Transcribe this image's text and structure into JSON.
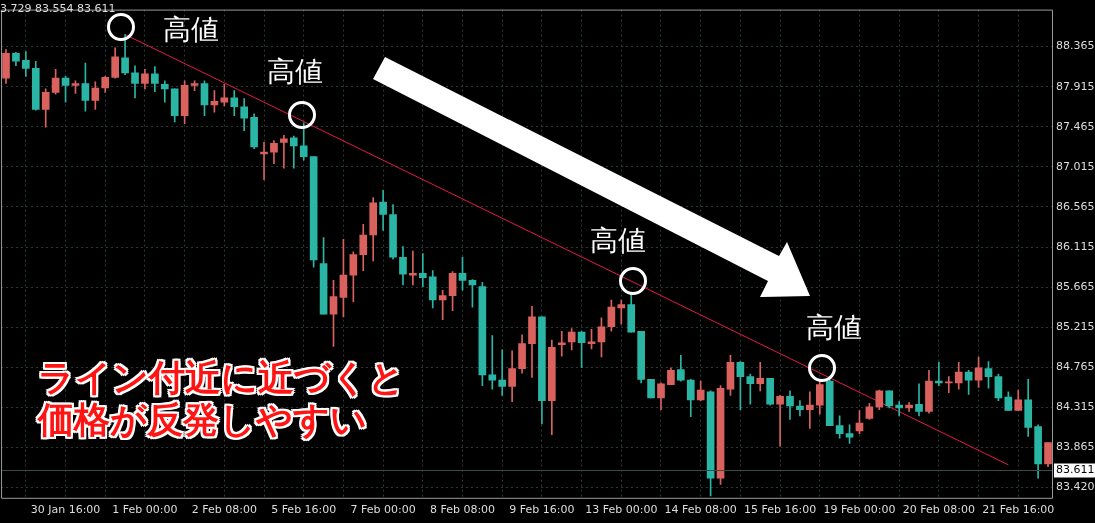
{
  "chart_data": {
    "type": "candlestick",
    "categories": [
      null,
      null,
      null,
      null,
      null,
      null,
      "30 Jan 16:00",
      null,
      null,
      null,
      null,
      null,
      null,
      null,
      "1 Feb 00:00",
      null,
      null,
      null,
      null,
      null,
      null,
      null,
      "2 Feb 08:00",
      null,
      null,
      null,
      null,
      null,
      null,
      null,
      "5 Feb 16:00",
      null,
      null,
      null,
      null,
      null,
      null,
      null,
      "7 Feb 00:00",
      null,
      null,
      null,
      null,
      null,
      null,
      null,
      "8 Feb 08:00",
      null,
      null,
      null,
      null,
      null,
      null,
      null,
      "9 Feb 16:00",
      null,
      null,
      null,
      null,
      null,
      null,
      null,
      "13 Feb 00:00",
      null,
      null,
      null,
      null,
      null,
      null,
      null,
      "14 Feb 08:00",
      null,
      null,
      null,
      null,
      null,
      null,
      null,
      "15 Feb 16:00",
      null,
      null,
      null,
      null,
      null,
      null,
      null,
      "19 Feb 00:00",
      null,
      null,
      null,
      null,
      null,
      null,
      null,
      "20 Feb 08:00",
      null,
      null,
      null,
      null,
      null,
      null,
      null,
      "21 Feb 16:00",
      null,
      null,
      null
    ],
    "ohlc": [
      [
        88.01,
        88.33,
        87.95,
        88.29
      ],
      [
        88.29,
        88.3,
        88.15,
        88.2
      ],
      [
        88.21,
        88.31,
        88.03,
        88.12
      ],
      [
        88.12,
        88.2,
        87.65,
        87.66
      ],
      [
        87.66,
        87.89,
        87.46,
        87.85
      ],
      [
        87.85,
        88.11,
        87.83,
        88.01
      ],
      [
        88.01,
        88.03,
        87.74,
        87.93
      ],
      [
        87.93,
        87.98,
        87.84,
        87.95
      ],
      [
        87.95,
        88.18,
        87.64,
        87.76
      ],
      [
        87.76,
        87.97,
        87.66,
        87.9
      ],
      [
        87.9,
        88.03,
        87.85,
        88.02
      ],
      [
        88.02,
        88.35,
        88.01,
        88.25
      ],
      [
        88.24,
        88.5,
        88.05,
        88.07
      ],
      [
        88.07,
        88.15,
        87.79,
        87.95
      ],
      [
        87.95,
        88.11,
        87.89,
        88.06
      ],
      [
        88.06,
        88.14,
        87.86,
        87.95
      ],
      [
        87.94,
        87.98,
        87.74,
        87.89
      ],
      [
        87.89,
        87.89,
        87.52,
        87.59
      ],
      [
        87.59,
        87.98,
        87.5,
        87.93
      ],
      [
        87.93,
        87.98,
        87.87,
        87.95
      ],
      [
        87.95,
        87.98,
        87.59,
        87.71
      ],
      [
        87.71,
        87.87,
        87.63,
        87.75
      ],
      [
        87.74,
        87.94,
        87.7,
        87.79
      ],
      [
        87.79,
        87.87,
        87.59,
        87.69
      ],
      [
        87.69,
        87.78,
        87.42,
        87.56
      ],
      [
        87.57,
        87.61,
        87.22,
        87.24
      ],
      [
        87.16,
        87.29,
        86.87,
        87.18
      ],
      [
        87.18,
        87.31,
        87.05,
        87.28
      ],
      [
        87.29,
        87.37,
        87.0,
        87.33
      ],
      [
        87.34,
        87.36,
        87.0,
        87.25
      ],
      [
        87.25,
        87.51,
        87.09,
        87.13
      ],
      [
        87.13,
        87.13,
        85.89,
        85.97
      ],
      [
        85.93,
        86.22,
        85.36,
        85.36
      ],
      [
        85.36,
        85.74,
        85.0,
        85.56
      ],
      [
        85.55,
        86.2,
        85.33,
        85.8
      ],
      [
        85.8,
        86.06,
        85.5,
        86.03
      ],
      [
        86.03,
        86.37,
        85.85,
        86.25
      ],
      [
        86.25,
        86.67,
        85.96,
        86.61
      ],
      [
        86.62,
        86.75,
        86.3,
        86.48
      ],
      [
        86.48,
        86.59,
        85.98,
        86.0
      ],
      [
        86.0,
        86.12,
        85.69,
        85.81
      ],
      [
        85.8,
        86.07,
        85.69,
        85.82
      ],
      [
        85.82,
        86.04,
        85.67,
        85.77
      ],
      [
        85.78,
        85.85,
        85.43,
        85.52
      ],
      [
        85.52,
        85.63,
        85.3,
        85.57
      ],
      [
        85.57,
        85.84,
        85.4,
        85.82
      ],
      [
        85.82,
        86.0,
        85.63,
        85.74
      ],
      [
        85.74,
        85.75,
        85.44,
        85.69
      ],
      [
        85.67,
        85.72,
        84.56,
        84.68
      ],
      [
        84.68,
        85.12,
        84.52,
        84.62
      ],
      [
        84.62,
        84.96,
        84.45,
        84.55
      ],
      [
        84.55,
        84.95,
        84.38,
        84.75
      ],
      [
        84.75,
        85.13,
        84.7,
        85.03
      ],
      [
        85.03,
        85.45,
        84.65,
        85.33
      ],
      [
        85.33,
        85.33,
        84.13,
        84.39
      ],
      [
        84.39,
        85.07,
        84.01,
        84.99
      ],
      [
        85.02,
        85.17,
        84.89,
        85.04
      ],
      [
        85.05,
        85.2,
        84.96,
        85.16
      ],
      [
        85.16,
        85.17,
        84.76,
        85.04
      ],
      [
        85.03,
        85.19,
        84.97,
        85.05
      ],
      [
        85.05,
        85.32,
        84.88,
        85.22
      ],
      [
        85.22,
        85.52,
        85.17,
        85.44
      ],
      [
        85.43,
        85.52,
        85.25,
        85.47
      ],
      [
        85.47,
        85.59,
        85.16,
        85.16
      ],
      [
        85.17,
        85.17,
        84.59,
        84.63
      ],
      [
        84.63,
        84.63,
        84.42,
        84.42
      ],
      [
        84.42,
        84.59,
        84.29,
        84.58
      ],
      [
        84.57,
        84.76,
        84.57,
        84.73
      ],
      [
        84.74,
        84.9,
        84.61,
        84.62
      ],
      [
        84.62,
        84.63,
        84.21,
        84.4
      ],
      [
        84.4,
        84.61,
        84.39,
        84.51
      ],
      [
        84.49,
        84.5,
        83.32,
        83.52
      ],
      [
        83.52,
        84.56,
        83.45,
        84.53
      ],
      [
        84.52,
        84.9,
        84.45,
        84.82
      ],
      [
        84.82,
        84.83,
        84.29,
        84.66
      ],
      [
        84.66,
        84.69,
        84.35,
        84.58
      ],
      [
        84.58,
        84.82,
        84.5,
        84.64
      ],
      [
        84.64,
        84.64,
        84.34,
        84.35
      ],
      [
        84.35,
        84.45,
        83.88,
        84.44
      ],
      [
        84.44,
        84.5,
        84.18,
        84.33
      ],
      [
        84.33,
        84.39,
        84.22,
        84.29
      ],
      [
        84.29,
        84.49,
        84.08,
        84.34
      ],
      [
        84.34,
        84.63,
        84.24,
        84.57
      ],
      [
        84.61,
        84.63,
        84.11,
        84.11
      ],
      [
        84.11,
        84.22,
        83.97,
        84.02
      ],
      [
        84.02,
        84.12,
        83.91,
        83.98
      ],
      [
        84.05,
        84.28,
        84.02,
        84.14
      ],
      [
        84.19,
        84.36,
        84.18,
        84.32
      ],
      [
        84.32,
        84.51,
        84.29,
        84.5
      ],
      [
        84.5,
        84.5,
        84.31,
        84.33
      ],
      [
        84.34,
        84.38,
        84.22,
        84.31
      ],
      [
        84.31,
        84.37,
        84.27,
        84.34
      ],
      [
        84.35,
        84.58,
        84.22,
        84.27
      ],
      [
        84.27,
        84.73,
        84.25,
        84.61
      ],
      [
        84.61,
        84.82,
        84.56,
        84.59
      ],
      [
        84.59,
        84.66,
        84.48,
        84.6
      ],
      [
        84.59,
        84.82,
        84.52,
        84.71
      ],
      [
        84.71,
        84.73,
        84.46,
        84.62
      ],
      [
        84.62,
        84.88,
        84.54,
        84.76
      ],
      [
        84.75,
        84.83,
        84.53,
        84.66
      ],
      [
        84.66,
        84.69,
        84.39,
        84.42
      ],
      [
        84.43,
        84.49,
        84.28,
        84.28
      ],
      [
        84.28,
        84.51,
        84.28,
        84.4
      ],
      [
        84.4,
        84.63,
        83.99,
        84.09
      ],
      [
        84.1,
        84.12,
        83.52,
        83.68
      ],
      [
        83.68,
        83.92,
        83.65,
        83.92
      ]
    ],
    "colors": [
      "#d9625f",
      "#2ab5a5",
      "#2ab5a5",
      "#2ab5a5",
      "#d9625f",
      "#d9625f",
      "#2ab5a5",
      "#d9625f",
      "#2ab5a5",
      "#d9625f",
      "#d9625f",
      "#d9625f",
      "#2ab5a5",
      "#2ab5a5",
      "#d9625f",
      "#2ab5a5",
      "#2ab5a5",
      "#2ab5a5",
      "#d9625f",
      "#d9625f",
      "#2ab5a5",
      "#d9625f",
      "#d9625f",
      "#2ab5a5",
      "#2ab5a5",
      "#2ab5a5",
      "#d9625f",
      "#d9625f",
      "#d9625f",
      "#2ab5a5",
      "#2ab5a5",
      "#2ab5a5",
      "#2ab5a5",
      "#d9625f",
      "#d9625f",
      "#d9625f",
      "#d9625f",
      "#d9625f",
      "#2ab5a5",
      "#2ab5a5",
      "#2ab5a5",
      "#d9625f",
      "#2ab5a5",
      "#2ab5a5",
      "#d9625f",
      "#d9625f",
      "#2ab5a5",
      "#2ab5a5",
      "#2ab5a5",
      "#2ab5a5",
      "#2ab5a5",
      "#d9625f",
      "#d9625f",
      "#d9625f",
      "#2ab5a5",
      "#d9625f",
      "#d9625f",
      "#d9625f",
      "#2ab5a5",
      "#d9625f",
      "#d9625f",
      "#d9625f",
      "#d9625f",
      "#2ab5a5",
      "#2ab5a5",
      "#2ab5a5",
      "#d9625f",
      "#d9625f",
      "#2ab5a5",
      "#2ab5a5",
      "#d9625f",
      "#2ab5a5",
      "#d9625f",
      "#d9625f",
      "#2ab5a5",
      "#2ab5a5",
      "#d9625f",
      "#2ab5a5",
      "#d9625f",
      "#2ab5a5",
      "#2ab5a5",
      "#d9625f",
      "#d9625f",
      "#2ab5a5",
      "#2ab5a5",
      "#2ab5a5",
      "#d9625f",
      "#d9625f",
      "#d9625f",
      "#2ab5a5",
      "#2ab5a5",
      "#d9625f",
      "#2ab5a5",
      "#d9625f",
      "#2ab5a5",
      "#d9625f",
      "#d9625f",
      "#2ab5a5",
      "#d9625f",
      "#2ab5a5",
      "#2ab5a5",
      "#2ab5a5",
      "#d9625f",
      "#2ab5a5",
      "#2ab5a5",
      "#d9625f"
    ],
    "series": [
      {
        "type": "line",
        "color": "#e8174a",
        "values": [
          null,
          null,
          null,
          null,
          null,
          null,
          null,
          null,
          null,
          null,
          null,
          null,
          88.5,
          null,
          null,
          null,
          null,
          null,
          null,
          null,
          null,
          null,
          null,
          null,
          null,
          null,
          null,
          null,
          null,
          null,
          null,
          null,
          null,
          null,
          null,
          null,
          null,
          null,
          null,
          null,
          null,
          null,
          null,
          null,
          null,
          null,
          null,
          null,
          null,
          null,
          null,
          null,
          null,
          null,
          null,
          null,
          null,
          null,
          null,
          null,
          null,
          null,
          null,
          null,
          null,
          null,
          null,
          null,
          null,
          null,
          null,
          null,
          null,
          null,
          null,
          null,
          null,
          null,
          null,
          null,
          null,
          null,
          null,
          null,
          null,
          null,
          null,
          null,
          null,
          null,
          null,
          null,
          null,
          null,
          null,
          null,
          null,
          null,
          null,
          null,
          null,
          83.67,
          null,
          null,
          null,
          null
        ]
      }
    ],
    "ylim": [
      83.3,
      88.78
    ],
    "yticks": [
      88.365,
      87.915,
      87.465,
      87.015,
      86.565,
      86.115,
      85.665,
      85.215,
      84.765,
      84.315,
      83.865,
      {
        "value": 83.42,
        "label": "83.420"
      }
    ],
    "grid": true,
    "ref_lines": [
      {
        "axis": "y",
        "value": 83.611,
        "label": "83.611",
        "color": "#3c4a48"
      }
    ],
    "annotations": [
      "3.729 83.554 83.611",
      "高値",
      "高値",
      "高値",
      "高値",
      "ライン付近に近づくと",
      "価格が反発しやすい"
    ]
  }
}
